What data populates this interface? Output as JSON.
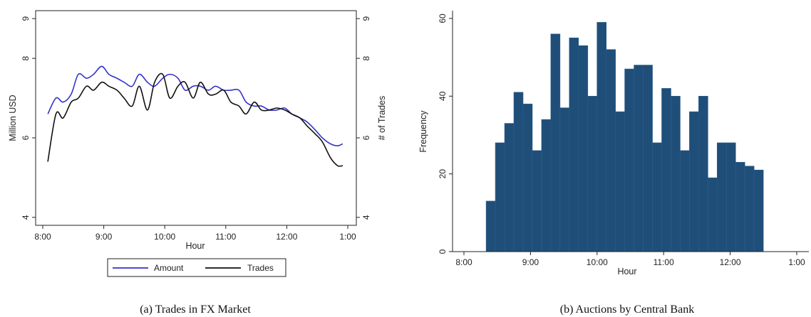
{
  "chart_data": [
    {
      "type": "line",
      "caption": "(a) Trades in FX Market",
      "xlabel": "Hour",
      "ylabel": "Million USD",
      "ylabel_right": "# of Trades",
      "x_ticks": [
        "8:00",
        "9:00",
        "10:00",
        "11:00",
        "12:00",
        "1:00"
      ],
      "y_ticks": [
        "4",
        "6",
        "8",
        "9"
      ],
      "y_ticks_right": [
        "4",
        "6",
        "8",
        "9"
      ],
      "ylim": [
        3.8,
        9.2
      ],
      "legend_position": "bottom",
      "series": [
        {
          "name": "Amount",
          "color": "#3333cc",
          "x": [
            "8:05",
            "8:13",
            "8:20",
            "8:28",
            "8:35",
            "8:43",
            "8:50",
            "8:58",
            "9:05",
            "9:13",
            "9:20",
            "9:28",
            "9:35",
            "9:43",
            "9:50",
            "9:58",
            "10:05",
            "10:13",
            "10:20",
            "10:28",
            "10:35",
            "10:43",
            "10:50",
            "10:58",
            "11:05",
            "11:13",
            "11:20",
            "11:28",
            "11:35",
            "11:43",
            "11:50",
            "11:58",
            "12:05",
            "12:13",
            "12:20",
            "12:28",
            "12:35",
            "12:43",
            "12:50",
            "12:55"
          ],
          "values": [
            6.6,
            7.0,
            6.9,
            7.1,
            7.6,
            7.5,
            7.6,
            7.8,
            7.6,
            7.5,
            7.4,
            7.3,
            7.6,
            7.4,
            7.3,
            7.5,
            7.6,
            7.5,
            7.2,
            7.3,
            7.3,
            7.2,
            7.3,
            7.2,
            7.2,
            7.2,
            6.9,
            6.8,
            6.8,
            6.7,
            6.7,
            6.75,
            6.6,
            6.5,
            6.4,
            6.2,
            6.0,
            5.85,
            5.8,
            5.85
          ]
        },
        {
          "name": "Trades",
          "color": "#111111",
          "x": [
            "8:05",
            "8:13",
            "8:20",
            "8:28",
            "8:35",
            "8:43",
            "8:50",
            "8:58",
            "9:05",
            "9:13",
            "9:20",
            "9:28",
            "9:35",
            "9:43",
            "9:50",
            "9:58",
            "10:05",
            "10:13",
            "10:20",
            "10:28",
            "10:35",
            "10:43",
            "10:50",
            "10:58",
            "11:05",
            "11:13",
            "11:20",
            "11:28",
            "11:35",
            "11:43",
            "11:50",
            "11:58",
            "12:05",
            "12:13",
            "12:20",
            "12:28",
            "12:35",
            "12:43",
            "12:50",
            "12:55"
          ],
          "values": [
            5.4,
            6.6,
            6.5,
            6.9,
            7.0,
            7.3,
            7.2,
            7.4,
            7.3,
            7.2,
            7.0,
            6.8,
            7.3,
            6.7,
            7.4,
            7.6,
            7.0,
            7.3,
            7.4,
            7.0,
            7.4,
            7.1,
            7.1,
            7.2,
            6.9,
            6.8,
            6.6,
            6.9,
            6.7,
            6.7,
            6.75,
            6.7,
            6.6,
            6.5,
            6.3,
            6.1,
            5.9,
            5.5,
            5.3,
            5.3
          ]
        }
      ]
    },
    {
      "type": "bar",
      "caption": "(b) Auctions by Central Bank",
      "xlabel": "Hour",
      "ylabel": "Frequency",
      "x_ticks": [
        "8:00",
        "9:00",
        "10:00",
        "11:00",
        "12:00",
        "1:00"
      ],
      "y_ticks": [
        "0",
        "20",
        "40",
        "60"
      ],
      "ylim": [
        0,
        62
      ],
      "bar_color": "#1f4e79",
      "bin_start": "8:20",
      "bin_width_minutes": 8.33,
      "values": [
        13,
        28,
        33,
        41,
        38,
        26,
        34,
        56,
        37,
        55,
        53,
        40,
        59,
        52,
        36,
        47,
        48,
        48,
        28,
        42,
        40,
        26,
        36,
        40,
        19,
        28,
        28,
        23,
        22,
        21
      ]
    }
  ]
}
